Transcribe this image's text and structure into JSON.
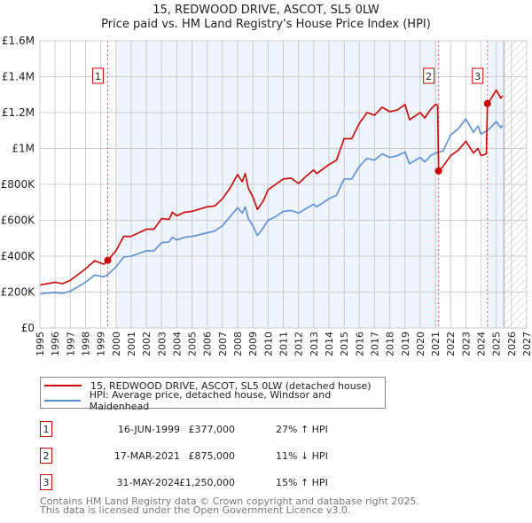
{
  "header": {
    "title": "15, REDWOOD DRIVE, ASCOT, SL5 0LW",
    "subtitle": "Price paid vs. HM Land Registry's House Price Index (HPI)"
  },
  "chart_data": {
    "type": "line",
    "title": "Price paid vs. HM Land Registry's House Price Index (HPI)",
    "ylim": [
      0,
      1600000
    ],
    "xlim": [
      1995,
      2027
    ],
    "y_ticks": [
      {
        "v": 0,
        "label": "£0"
      },
      {
        "v": 200000,
        "label": "£200K"
      },
      {
        "v": 400000,
        "label": "£400K"
      },
      {
        "v": 600000,
        "label": "£600K"
      },
      {
        "v": 800000,
        "label": "£800K"
      },
      {
        "v": 1000000,
        "label": "£1M"
      },
      {
        "v": 1200000,
        "label": "£1.2M"
      },
      {
        "v": 1400000,
        "label": "£1.4M"
      },
      {
        "v": 1600000,
        "label": "£1.6M"
      }
    ],
    "x_ticks": [
      "1995",
      "1996",
      "1997",
      "1998",
      "1999",
      "2000",
      "2001",
      "2002",
      "2003",
      "2004",
      "2005",
      "2006",
      "2007",
      "2008",
      "2009",
      "2010",
      "2011",
      "2012",
      "2013",
      "2014",
      "2015",
      "2016",
      "2017",
      "2018",
      "2019",
      "2020",
      "2021",
      "2022",
      "2023",
      "2024",
      "2025",
      "2026",
      "2027"
    ],
    "grid": true,
    "shaded_ranges": [
      [
        2000.0,
        2021.2
      ],
      [
        2024.42,
        2025.5
      ]
    ],
    "forecast_hatch": [
      2025.5,
      2027
    ],
    "series": [
      {
        "name": "15, REDWOOD DRIVE, ASCOT, SL5 0LW (detached house)",
        "color": "#cc0000",
        "points": [
          [
            1995,
            240
          ],
          [
            1996,
            255
          ],
          [
            1996.5,
            247
          ],
          [
            1997,
            265
          ],
          [
            1998,
            330
          ],
          [
            1998.6,
            375
          ],
          [
            1999.2,
            355
          ],
          [
            1999.46,
            377
          ],
          [
            2000,
            430
          ],
          [
            2000.5,
            510
          ],
          [
            2001,
            510
          ],
          [
            2002,
            550
          ],
          [
            2002.5,
            550
          ],
          [
            2003,
            610
          ],
          [
            2003.5,
            605
          ],
          [
            2003.7,
            645
          ],
          [
            2004,
            625
          ],
          [
            2004.5,
            645
          ],
          [
            2005,
            650
          ],
          [
            2006,
            675
          ],
          [
            2006.5,
            680
          ],
          [
            2007,
            720
          ],
          [
            2007.5,
            780
          ],
          [
            2008,
            855
          ],
          [
            2008.3,
            815
          ],
          [
            2008.5,
            860
          ],
          [
            2008.7,
            780
          ],
          [
            2009,
            730
          ],
          [
            2009.3,
            660
          ],
          [
            2009.7,
            710
          ],
          [
            2010,
            770
          ],
          [
            2010.5,
            800
          ],
          [
            2011,
            830
          ],
          [
            2011.5,
            835
          ],
          [
            2012,
            805
          ],
          [
            2012.5,
            845
          ],
          [
            2013,
            880
          ],
          [
            2013.2,
            860
          ],
          [
            2014,
            910
          ],
          [
            2014.5,
            935
          ],
          [
            2015,
            1055
          ],
          [
            2015.5,
            1055
          ],
          [
            2016,
            1140
          ],
          [
            2016.5,
            1200
          ],
          [
            2017,
            1185
          ],
          [
            2017.5,
            1230
          ],
          [
            2018,
            1205
          ],
          [
            2018.5,
            1215
          ],
          [
            2019,
            1245
          ],
          [
            2019.3,
            1160
          ],
          [
            2020,
            1200
          ],
          [
            2020.3,
            1170
          ],
          [
            2020.7,
            1220
          ],
          [
            2021,
            1245
          ],
          [
            2021.15,
            1240
          ],
          [
            2021.21,
            875
          ],
          [
            2021.5,
            900
          ],
          [
            2022,
            960
          ],
          [
            2022.5,
            990
          ],
          [
            2023,
            1040
          ],
          [
            2023.5,
            975
          ],
          [
            2023.8,
            1000
          ],
          [
            2024,
            960
          ],
          [
            2024.35,
            970
          ],
          [
            2024.42,
            1250
          ],
          [
            2024.6,
            1270
          ],
          [
            2025,
            1325
          ],
          [
            2025.3,
            1280
          ],
          [
            2025.4,
            1295
          ]
        ]
      },
      {
        "name": "HPI: Average price, detached house, Windsor and Maidenhead",
        "color": "#5b8fd4",
        "points": [
          [
            1995,
            190
          ],
          [
            1996,
            198
          ],
          [
            1996.5,
            193
          ],
          [
            1997,
            205
          ],
          [
            1998,
            255
          ],
          [
            1998.6,
            295
          ],
          [
            1999.2,
            285
          ],
          [
            1999.5,
            300
          ],
          [
            2000,
            340
          ],
          [
            2000.5,
            395
          ],
          [
            2001,
            400
          ],
          [
            2002,
            430
          ],
          [
            2002.5,
            430
          ],
          [
            2003,
            475
          ],
          [
            2003.5,
            480
          ],
          [
            2003.7,
            505
          ],
          [
            2004,
            490
          ],
          [
            2004.5,
            505
          ],
          [
            2005,
            510
          ],
          [
            2006,
            530
          ],
          [
            2006.5,
            540
          ],
          [
            2007,
            570
          ],
          [
            2007.5,
            620
          ],
          [
            2008,
            670
          ],
          [
            2008.3,
            640
          ],
          [
            2008.5,
            675
          ],
          [
            2008.7,
            610
          ],
          [
            2009,
            570
          ],
          [
            2009.3,
            515
          ],
          [
            2009.7,
            560
          ],
          [
            2010,
            600
          ],
          [
            2010.5,
            620
          ],
          [
            2011,
            650
          ],
          [
            2011.5,
            655
          ],
          [
            2012,
            640
          ],
          [
            2012.5,
            665
          ],
          [
            2013,
            690
          ],
          [
            2013.2,
            675
          ],
          [
            2014,
            720
          ],
          [
            2014.5,
            740
          ],
          [
            2015,
            830
          ],
          [
            2015.5,
            830
          ],
          [
            2016,
            900
          ],
          [
            2016.5,
            945
          ],
          [
            2017,
            935
          ],
          [
            2017.5,
            970
          ],
          [
            2018,
            950
          ],
          [
            2018.5,
            960
          ],
          [
            2019,
            980
          ],
          [
            2019.3,
            915
          ],
          [
            2020,
            950
          ],
          [
            2020.3,
            925
          ],
          [
            2020.7,
            960
          ],
          [
            2021,
            975
          ],
          [
            2021.5,
            985
          ],
          [
            2022,
            1075
          ],
          [
            2022.5,
            1110
          ],
          [
            2023,
            1165
          ],
          [
            2023.5,
            1090
          ],
          [
            2023.8,
            1125
          ],
          [
            2024,
            1080
          ],
          [
            2024.5,
            1105
          ],
          [
            2025,
            1150
          ],
          [
            2025.3,
            1115
          ],
          [
            2025.4,
            1130
          ]
        ]
      }
    ],
    "sales": [
      {
        "label": "1",
        "x": 1999.46,
        "value": 377000
      },
      {
        "label": "2",
        "x": 2021.21,
        "value": 875000
      },
      {
        "label": "3",
        "x": 2024.42,
        "value": 1250000
      }
    ],
    "point_units": "thousands GBP"
  },
  "legend": [
    {
      "label": "15, REDWOOD DRIVE, ASCOT, SL5 0LW (detached house)",
      "color": "#cc0000"
    },
    {
      "label": "HPI: Average price, detached house, Windsor and Maidenhead",
      "color": "#5b8fd4"
    }
  ],
  "transactions": [
    {
      "num": "1",
      "date": "16-JUN-1999",
      "price": "£377,000",
      "hpi": "27% ↑ HPI"
    },
    {
      "num": "2",
      "date": "17-MAR-2021",
      "price": "£875,000",
      "hpi": "11% ↓ HPI"
    },
    {
      "num": "3",
      "date": "31-MAY-2024",
      "price": "£1,250,000",
      "hpi": "15% ↑ HPI"
    }
  ],
  "footer": {
    "line1": "Contains HM Land Registry data © Crown copyright and database right 2025.",
    "line2": "This data is licensed under the Open Government Licence v3.0."
  }
}
